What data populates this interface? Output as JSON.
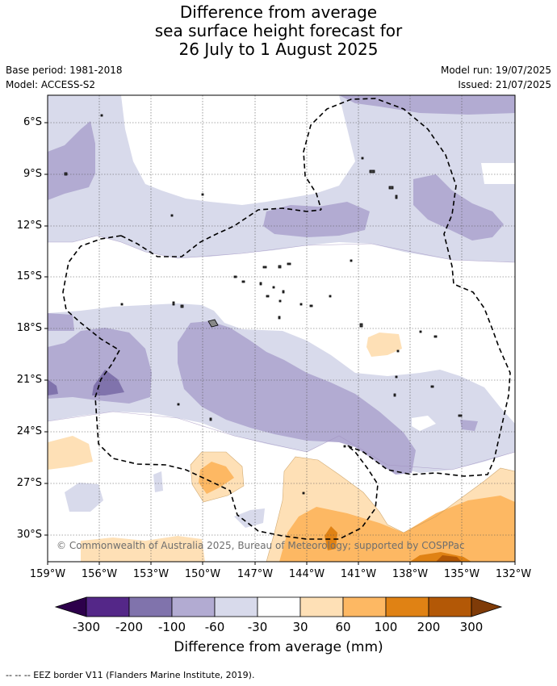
{
  "title_lines": [
    "Difference from average",
    "sea surface height forecast for",
    "26 July to 1 August 2025"
  ],
  "base_period": "Base period: 1981-2018",
  "model": "Model: ACCESS-S2",
  "model_run": "Model run: 19/07/2025",
  "issued": "Issued: 21/07/2025",
  "map": {
    "lon_range": [
      -159,
      -132
    ],
    "lat_range": [
      -31.5,
      -4.5
    ],
    "lat_ticks": [
      "6°S",
      "9°S",
      "12°S",
      "15°S",
      "18°S",
      "21°S",
      "24°S",
      "27°S",
      "30°S"
    ],
    "lon_ticks": [
      "159°W",
      "156°W",
      "153°W",
      "150°W",
      "147°W",
      "144°W",
      "141°W",
      "138°W",
      "135°W",
      "132°W"
    ],
    "copyright": "© Commonwealth of Australia 2025, Bureau of Meteorology; supported by COSPPac",
    "eez_legend": "-- -- -- EEZ border V11 (Flanders Marine Institute, 2019)."
  },
  "colorbar": {
    "label": "Difference from average (mm)",
    "ticks": [
      "-300",
      "-200",
      "-100",
      "-60",
      "-30",
      "30",
      "60",
      "100",
      "200",
      "300"
    ],
    "colors": {
      "below_-300": "#2d004b",
      "-300_-200": "#542788",
      "-200_-100": "#8073ac",
      "-100_-60": "#b2abd2",
      "-60_-30": "#d8daeb",
      "-30_30": "#ffffff",
      "30_60": "#fee0b6",
      "60_100": "#fdb863",
      "100_200": "#e08214",
      "200_300": "#b35806",
      "above_300": "#7f3b08"
    }
  }
}
